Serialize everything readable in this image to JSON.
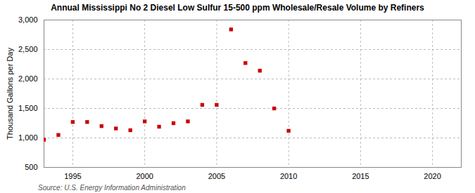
{
  "chart_data": {
    "type": "scatter",
    "title": "Annual Mississippi No 2 Diesel Low Sulfur 15-500 ppm Wholesale/Resale Volume by Refiners",
    "ylabel": "Thousand Gallons per Day",
    "source": "Source: U.S. Energy Information Administration",
    "x": [
      1993,
      1994,
      1995,
      1996,
      1997,
      1998,
      1999,
      2000,
      2001,
      2002,
      2003,
      2004,
      2005,
      2006,
      2007,
      2008,
      2009,
      2010
    ],
    "values": [
      970,
      1050,
      1270,
      1270,
      1200,
      1160,
      1130,
      1280,
      1190,
      1250,
      1280,
      1560,
      1560,
      2840,
      2270,
      2140,
      1500,
      1120
    ],
    "color": "#cc0000",
    "marker": "square",
    "xlim": [
      1993,
      2022
    ],
    "ylim": [
      500,
      3000
    ],
    "xticks": [
      1995,
      2000,
      2005,
      2010,
      2015,
      2020
    ],
    "yticks": [
      500,
      {
        "value": 1000,
        "label": "1,000"
      },
      {
        "value": 1500,
        "label": "1,500"
      },
      {
        "value": 2000,
        "label": "2,000"
      },
      {
        "value": 2500,
        "label": "2,500"
      },
      {
        "value": 3000,
        "label": "3,000"
      }
    ],
    "grid": true
  }
}
